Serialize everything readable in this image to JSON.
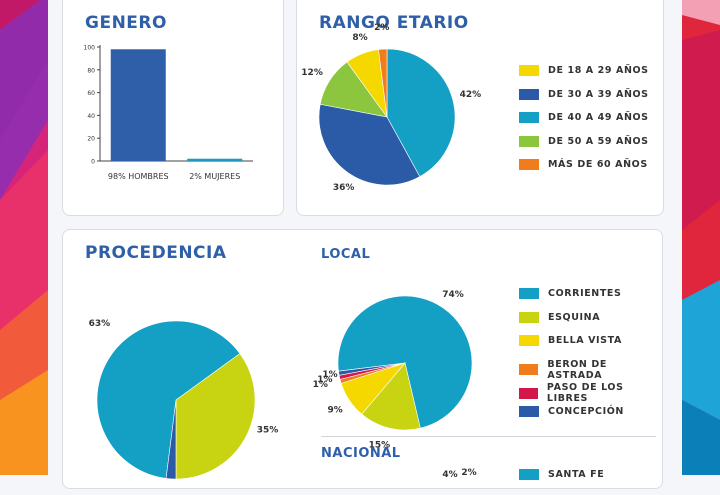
{
  "colors": {
    "title": "#2e5fa8",
    "text": "#333333",
    "blue": "#2e5fa8",
    "teal": "#1a9bc4",
    "yellow": "#f5d800",
    "dark_blue": "#2b5aa6",
    "cyan": "#13a0c4",
    "green": "#8cc63f",
    "orange": "#f07c1b",
    "lime": "#c8d411",
    "red": "#d4174a"
  },
  "genero": {
    "title": "GENERO",
    "chart_data": {
      "type": "bar",
      "categories": [
        "98% HOMBRES",
        "2% MUJERES"
      ],
      "values": [
        98,
        2
      ],
      "yticks": [
        "0",
        "20",
        "40",
        "60",
        "80",
        "100"
      ],
      "ylim": [
        0,
        100
      ],
      "colors": [
        "#2e5fa8",
        "#1a9bc4"
      ]
    }
  },
  "rango": {
    "title": "RANGO ETARIO",
    "chart_data": {
      "type": "pie",
      "labels": [
        "DE 18 A 29 AÑOS",
        "DE 30 A 39 AÑOS",
        "DE 40 A 49 AÑOS",
        "DE 50 A 59 AÑOS",
        "MÁS DE 60 AÑOS"
      ],
      "values": [
        8,
        36,
        42,
        12,
        2
      ],
      "value_labels": [
        "8%",
        "36%",
        "42%",
        "12%",
        "2%"
      ],
      "colors": [
        "#f5d800",
        "#2b5aa6",
        "#13a0c4",
        "#8cc63f",
        "#f07c1b"
      ],
      "legend": "right"
    }
  },
  "procedencia": {
    "title": "PROCEDENCIA",
    "chart_data": {
      "type": "pie",
      "values": [
        63,
        35,
        2
      ],
      "value_labels": [
        "63%",
        "35%",
        "2%"
      ],
      "colors": [
        "#13a0c4",
        "#c8d411",
        "#2b5aa6"
      ]
    }
  },
  "local": {
    "title": "LOCAL",
    "chart_data": {
      "type": "pie",
      "labels": [
        "CORRIENTES",
        "ESQUINA",
        "BELLA VISTA",
        "BERON DE ASTRADA",
        "PASO DE LOS LIBRES",
        "CONCEPCIÓN"
      ],
      "values": [
        74,
        15,
        9,
        1,
        1,
        1
      ],
      "value_labels": [
        "74%",
        "15%",
        "9%",
        "1%",
        "1%",
        "1%"
      ],
      "colors": [
        "#13a0c4",
        "#c8d411",
        "#f5d800",
        "#f07c1b",
        "#d4174a",
        "#2b5aa6"
      ],
      "legend": "right"
    }
  },
  "nacional": {
    "title": "NACIONAL",
    "value_labels": [
      "4%",
      "2%"
    ],
    "legend_labels": [
      "SANTA FE"
    ]
  }
}
